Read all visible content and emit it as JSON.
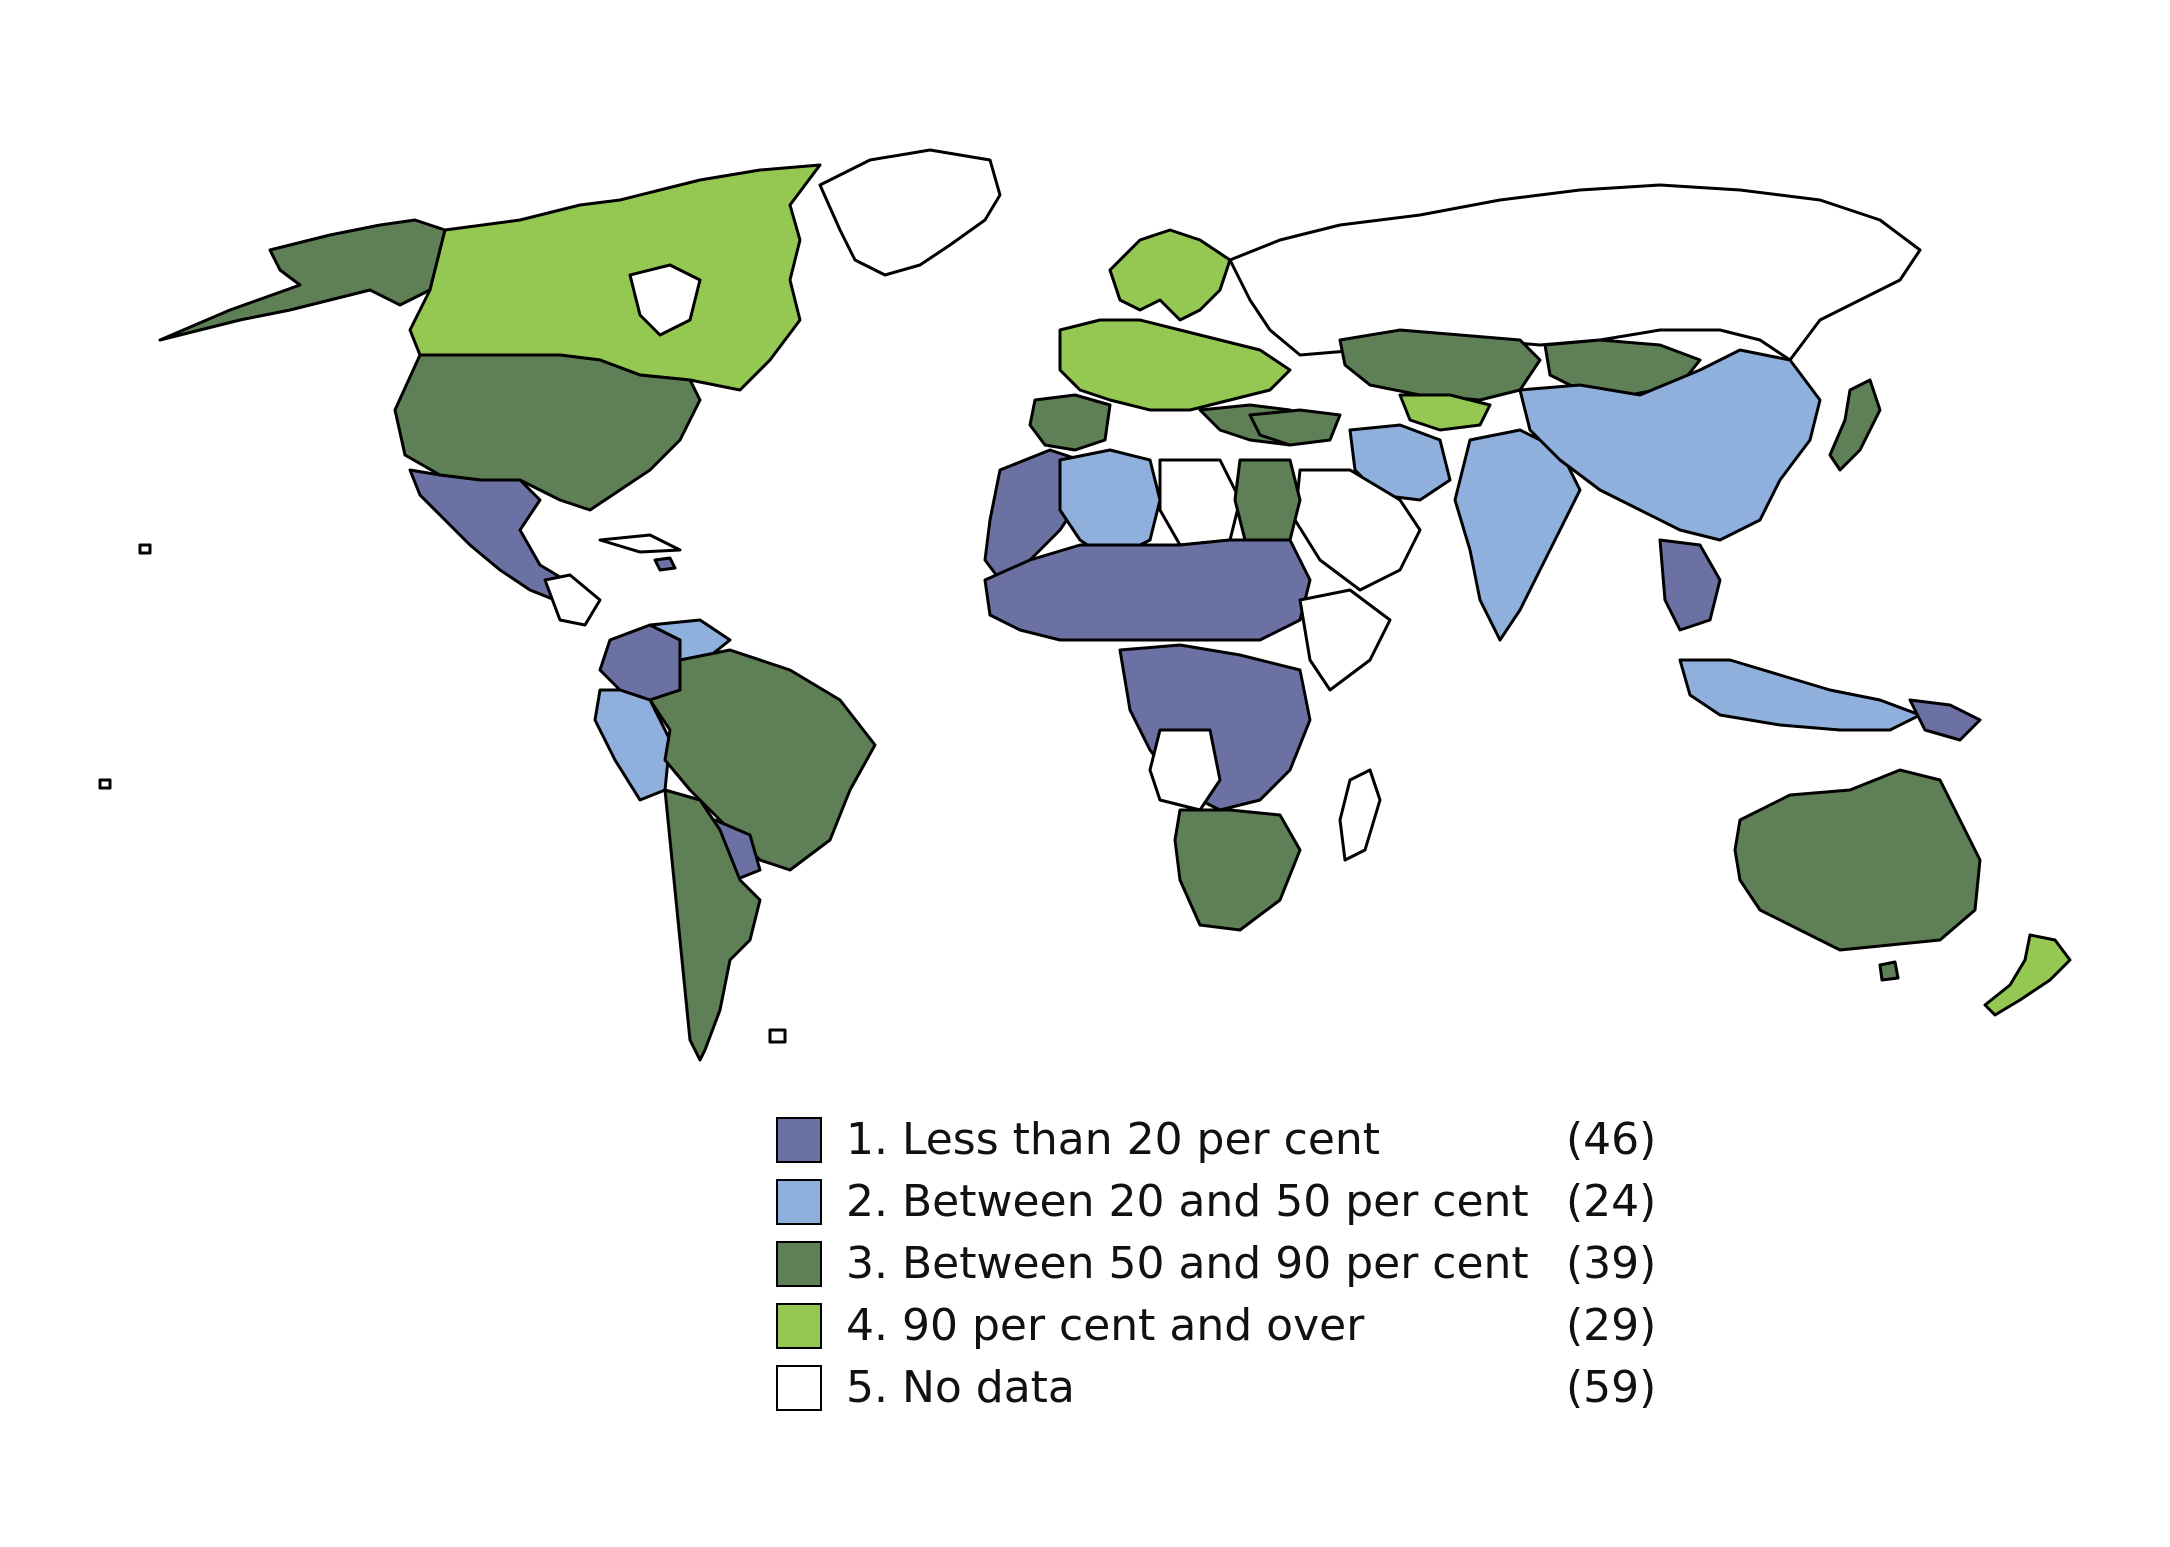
{
  "legend": {
    "items": [
      {
        "label": "1. Less than 20 per cent",
        "count": "(46)",
        "color": "#6b72a3"
      },
      {
        "label": "2. Between 20 and 50 per cent",
        "count": "(24)",
        "color": "#8fb0dd"
      },
      {
        "label": "3. Between 50 and 90 per cent",
        "count": "(39)",
        "color": "#5f8056"
      },
      {
        "label": "4. 90 per cent and over",
        "count": "(29)",
        "color": "#95c853"
      },
      {
        "label": "5. No data",
        "count": "(59)",
        "color": "#ffffff"
      }
    ]
  }
}
